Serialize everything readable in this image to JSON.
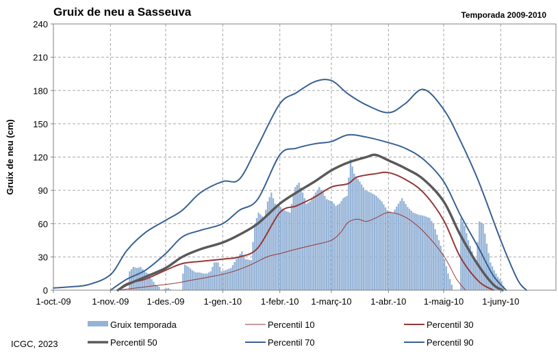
{
  "header": {
    "title": "Gruix de neu a Sasseuva",
    "season": "Temporada 2009-2010"
  },
  "footer": {
    "credit": "ICGC, 2023"
  },
  "chart_data": {
    "type": "bar",
    "title": "Gruix de neu a Sasseuva",
    "subtitle": "Temporada 2009-2010",
    "xlabel": "",
    "ylabel": "Gruix de neu (cm)",
    "ylim": [
      0,
      240
    ],
    "yticks": [
      0,
      30,
      60,
      90,
      120,
      150,
      180,
      210,
      240
    ],
    "xlim": [
      "2009-10-01",
      "2010-07-01"
    ],
    "xticks": [
      {
        "date": "2009-10-01",
        "label": "1-oct.-09"
      },
      {
        "date": "2009-11-01",
        "label": "1-nov.-09"
      },
      {
        "date": "2009-12-01",
        "label": "1-des.-09"
      },
      {
        "date": "2010-01-01",
        "label": "1-gen.-10"
      },
      {
        "date": "2010-02-01",
        "label": "1-febr.-10"
      },
      {
        "date": "2010-03-01",
        "label": "1-març-10"
      },
      {
        "date": "2010-04-01",
        "label": "1-abr.-10"
      },
      {
        "date": "2010-05-01",
        "label": "1-maig-10"
      },
      {
        "date": "2010-06-01",
        "label": "1-juny-10"
      }
    ],
    "grid": true,
    "legend_placement": "bottom",
    "bars": {
      "name": "Gruix temporada",
      "color": "#95b3d7",
      "points": [
        [
          "2009-11-10",
          0
        ],
        [
          "2009-11-11",
          17
        ],
        [
          "2009-11-13",
          21
        ],
        [
          "2009-11-15",
          20
        ],
        [
          "2009-11-17",
          21
        ],
        [
          "2009-11-19",
          17
        ],
        [
          "2009-11-21",
          15
        ],
        [
          "2009-11-23",
          10
        ],
        [
          "2009-11-25",
          5
        ],
        [
          "2009-11-27",
          3
        ],
        [
          "2009-11-28",
          0
        ],
        [
          "2009-12-02",
          2
        ],
        [
          "2009-12-04",
          0
        ],
        [
          "2009-12-09",
          0
        ],
        [
          "2009-12-10",
          15
        ],
        [
          "2009-12-11",
          23
        ],
        [
          "2009-12-13",
          21
        ],
        [
          "2009-12-15",
          18
        ],
        [
          "2009-12-17",
          16
        ],
        [
          "2009-12-19",
          16
        ],
        [
          "2009-12-21",
          15
        ],
        [
          "2009-12-23",
          15
        ],
        [
          "2009-12-25",
          17
        ],
        [
          "2009-12-27",
          25
        ],
        [
          "2009-12-29",
          25
        ],
        [
          "2009-12-31",
          17
        ],
        [
          "2010-01-02",
          18
        ],
        [
          "2010-01-05",
          20
        ],
        [
          "2010-01-08",
          28
        ],
        [
          "2010-01-11",
          35
        ],
        [
          "2010-01-13",
          28
        ],
        [
          "2010-01-16",
          27
        ],
        [
          "2010-01-18",
          60
        ],
        [
          "2010-01-20",
          70
        ],
        [
          "2010-01-23",
          65
        ],
        [
          "2010-01-25",
          80
        ],
        [
          "2010-01-27",
          88
        ],
        [
          "2010-01-29",
          78
        ],
        [
          "2010-02-01",
          75
        ],
        [
          "2010-02-03",
          72
        ],
        [
          "2010-02-06",
          70
        ],
        [
          "2010-02-09",
          93
        ],
        [
          "2010-02-11",
          97
        ],
        [
          "2010-02-13",
          88
        ],
        [
          "2010-02-15",
          78
        ],
        [
          "2010-02-17",
          80
        ],
        [
          "2010-02-20",
          88
        ],
        [
          "2010-02-22",
          93
        ],
        [
          "2010-02-24",
          88
        ],
        [
          "2010-02-26",
          82
        ],
        [
          "2010-03-01",
          80
        ],
        [
          "2010-03-03",
          76
        ],
        [
          "2010-03-05",
          78
        ],
        [
          "2010-03-07",
          83
        ],
        [
          "2010-03-09",
          85
        ],
        [
          "2010-03-11",
          118
        ],
        [
          "2010-03-13",
          105
        ],
        [
          "2010-03-16",
          98
        ],
        [
          "2010-03-19",
          90
        ],
        [
          "2010-03-22",
          88
        ],
        [
          "2010-03-25",
          85
        ],
        [
          "2010-03-28",
          80
        ],
        [
          "2010-03-31",
          72
        ],
        [
          "2010-04-03",
          70
        ],
        [
          "2010-04-06",
          78
        ],
        [
          "2010-04-08",
          83
        ],
        [
          "2010-04-11",
          75
        ],
        [
          "2010-04-14",
          70
        ],
        [
          "2010-04-17",
          68
        ],
        [
          "2010-04-20",
          67
        ],
        [
          "2010-04-23",
          65
        ],
        [
          "2010-04-25",
          60
        ],
        [
          "2010-04-27",
          50
        ],
        [
          "2010-04-29",
          40
        ],
        [
          "2010-05-01",
          28
        ],
        [
          "2010-05-03",
          15
        ],
        [
          "2010-05-05",
          5
        ],
        [
          "2010-05-06",
          0
        ],
        [
          "2010-05-09",
          0
        ],
        [
          "2010-05-10",
          65
        ],
        [
          "2010-05-12",
          58
        ],
        [
          "2010-05-14",
          45
        ],
        [
          "2010-05-16",
          35
        ],
        [
          "2010-05-18",
          25
        ],
        [
          "2010-05-20",
          62
        ],
        [
          "2010-05-22",
          60
        ],
        [
          "2010-05-24",
          42
        ],
        [
          "2010-05-26",
          25
        ],
        [
          "2010-05-28",
          18
        ],
        [
          "2010-05-30",
          12
        ],
        [
          "2010-06-01",
          8
        ],
        [
          "2010-06-03",
          0
        ]
      ]
    },
    "series": [
      {
        "name": "Percentil 10",
        "color": "#953735",
        "width": 1,
        "points": [
          [
            "2009-11-05",
            0
          ],
          [
            "2009-11-15",
            2
          ],
          [
            "2009-11-25",
            4
          ],
          [
            "2009-12-05",
            6
          ],
          [
            "2009-12-15",
            9
          ],
          [
            "2009-12-25",
            12
          ],
          [
            "2010-01-05",
            16
          ],
          [
            "2010-01-15",
            22
          ],
          [
            "2010-01-25",
            30
          ],
          [
            "2010-02-01",
            33
          ],
          [
            "2010-02-10",
            37
          ],
          [
            "2010-02-20",
            41
          ],
          [
            "2010-03-01",
            45
          ],
          [
            "2010-03-06",
            52
          ],
          [
            "2010-03-10",
            61
          ],
          [
            "2010-03-15",
            64
          ],
          [
            "2010-03-20",
            62
          ],
          [
            "2010-03-25",
            65
          ],
          [
            "2010-04-01",
            70
          ],
          [
            "2010-04-10",
            66
          ],
          [
            "2010-04-20",
            53
          ],
          [
            "2010-05-01",
            31
          ],
          [
            "2010-05-08",
            10
          ],
          [
            "2010-05-13",
            0
          ]
        ]
      },
      {
        "name": "Percentil 30",
        "color": "#953735",
        "width": 2,
        "points": [
          [
            "2009-11-05",
            0
          ],
          [
            "2009-11-10",
            6
          ],
          [
            "2009-11-20",
            10
          ],
          [
            "2009-12-01",
            18
          ],
          [
            "2009-12-10",
            24
          ],
          [
            "2009-12-20",
            26
          ],
          [
            "2010-01-01",
            28
          ],
          [
            "2010-01-10",
            30
          ],
          [
            "2010-01-20",
            38
          ],
          [
            "2010-02-01",
            70
          ],
          [
            "2010-02-10",
            76
          ],
          [
            "2010-02-20",
            84
          ],
          [
            "2010-03-01",
            93
          ],
          [
            "2010-03-10",
            96
          ],
          [
            "2010-03-15",
            102
          ],
          [
            "2010-03-25",
            105
          ],
          [
            "2010-04-01",
            106
          ],
          [
            "2010-04-10",
            100
          ],
          [
            "2010-04-20",
            88
          ],
          [
            "2010-05-01",
            63
          ],
          [
            "2010-05-10",
            30
          ],
          [
            "2010-05-20",
            8
          ],
          [
            "2010-05-28",
            0
          ]
        ]
      },
      {
        "name": "Percentil 50",
        "color": "#595959",
        "width": 3.5,
        "points": [
          [
            "2009-11-05",
            0
          ],
          [
            "2009-11-10",
            5
          ],
          [
            "2009-11-20",
            12
          ],
          [
            "2009-12-01",
            20
          ],
          [
            "2009-12-10",
            30
          ],
          [
            "2009-12-20",
            37
          ],
          [
            "2010-01-01",
            43
          ],
          [
            "2010-01-10",
            50
          ],
          [
            "2010-01-20",
            60
          ],
          [
            "2010-02-01",
            78
          ],
          [
            "2010-02-10",
            88
          ],
          [
            "2010-02-20",
            98
          ],
          [
            "2010-03-01",
            108
          ],
          [
            "2010-03-10",
            115
          ],
          [
            "2010-03-20",
            120
          ],
          [
            "2010-03-25",
            122
          ],
          [
            "2010-04-01",
            117
          ],
          [
            "2010-04-10",
            110
          ],
          [
            "2010-04-20",
            100
          ],
          [
            "2010-05-01",
            80
          ],
          [
            "2010-05-10",
            50
          ],
          [
            "2010-05-20",
            22
          ],
          [
            "2010-05-28",
            5
          ],
          [
            "2010-06-02",
            0
          ]
        ]
      },
      {
        "name": "Percentil 70",
        "color": "#376092",
        "width": 2,
        "points": [
          [
            "2009-11-01",
            0
          ],
          [
            "2009-11-10",
            10
          ],
          [
            "2009-11-20",
            18
          ],
          [
            "2009-12-01",
            33
          ],
          [
            "2009-12-10",
            48
          ],
          [
            "2009-12-20",
            54
          ],
          [
            "2010-01-01",
            60
          ],
          [
            "2010-01-10",
            72
          ],
          [
            "2010-01-20",
            82
          ],
          [
            "2010-02-01",
            122
          ],
          [
            "2010-02-10",
            128
          ],
          [
            "2010-02-20",
            132
          ],
          [
            "2010-03-01",
            134
          ],
          [
            "2010-03-10",
            140
          ],
          [
            "2010-03-20",
            138
          ],
          [
            "2010-04-01",
            133
          ],
          [
            "2010-04-10",
            128
          ],
          [
            "2010-04-20",
            118
          ],
          [
            "2010-05-01",
            98
          ],
          [
            "2010-05-10",
            68
          ],
          [
            "2010-05-20",
            38
          ],
          [
            "2010-05-28",
            13
          ],
          [
            "2010-06-04",
            0
          ]
        ]
      },
      {
        "name": "Percentil 90",
        "color": "#376092",
        "width": 2,
        "points": [
          [
            "2009-10-01",
            2
          ],
          [
            "2009-10-10",
            3
          ],
          [
            "2009-10-20",
            5
          ],
          [
            "2009-11-01",
            14
          ],
          [
            "2009-11-10",
            36
          ],
          [
            "2009-11-20",
            52
          ],
          [
            "2009-12-01",
            63
          ],
          [
            "2009-12-10",
            72
          ],
          [
            "2009-12-20",
            88
          ],
          [
            "2010-01-01",
            98
          ],
          [
            "2010-01-10",
            100
          ],
          [
            "2010-01-20",
            130
          ],
          [
            "2010-02-01",
            168
          ],
          [
            "2010-02-10",
            178
          ],
          [
            "2010-02-20",
            188
          ],
          [
            "2010-03-01",
            189
          ],
          [
            "2010-03-10",
            177
          ],
          [
            "2010-03-20",
            167
          ],
          [
            "2010-04-01",
            160
          ],
          [
            "2010-04-10",
            168
          ],
          [
            "2010-04-20",
            181
          ],
          [
            "2010-05-01",
            163
          ],
          [
            "2010-05-10",
            135
          ],
          [
            "2010-05-20",
            98
          ],
          [
            "2010-06-01",
            45
          ],
          [
            "2010-06-10",
            10
          ],
          [
            "2010-06-15",
            0
          ]
        ]
      }
    ]
  }
}
